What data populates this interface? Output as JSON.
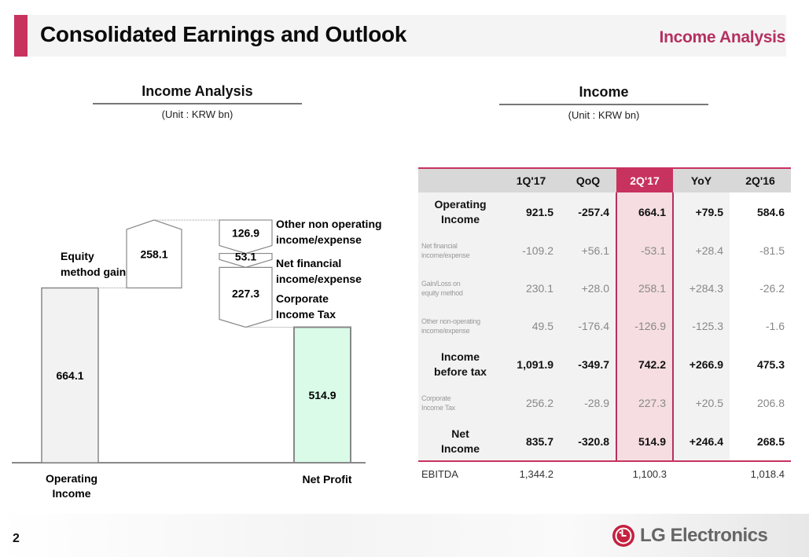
{
  "header": {
    "title": "Consolidated Earnings and Outlook",
    "section": "Income Analysis",
    "accent_color": "#c8325f"
  },
  "left_panel": {
    "title": "Income Analysis",
    "unit": "(Unit : KRW bn)"
  },
  "right_panel": {
    "title": "Income",
    "unit": "(Unit : KRW bn)"
  },
  "chart_data": {
    "type": "waterfall",
    "title": "Income Analysis",
    "unit": "KRW bn",
    "steps": [
      {
        "label": "Operating Income",
        "value": 664.1,
        "kind": "total",
        "display": "664.1"
      },
      {
        "label": "Equity method gain",
        "value": 258.1,
        "kind": "increase",
        "display": "258.1"
      },
      {
        "label": "Other non operating income/expense",
        "value": -126.9,
        "kind": "decrease",
        "display": "126.9"
      },
      {
        "label": "Net financial income/expense",
        "value": -53.1,
        "kind": "decrease",
        "display": "53.1"
      },
      {
        "label": "Corporate Income Tax",
        "value": -227.3,
        "kind": "decrease",
        "display": "227.3"
      },
      {
        "label": "Net Profit",
        "value": 514.9,
        "kind": "total",
        "display": "514.9"
      }
    ],
    "labels": {
      "operating_income": [
        "Operating",
        "Income"
      ],
      "equity": [
        "Equity",
        "method gain"
      ],
      "other": [
        "Other non operating",
        "income/expense"
      ],
      "netfin": [
        "Net financial",
        "income/expense"
      ],
      "tax": [
        "Corporate",
        "Income Tax"
      ],
      "net_profit": "Net Profit"
    },
    "colors": {
      "operating": "#f2f2f2",
      "net_profit": "#d9fbe8",
      "border": "#888888"
    }
  },
  "table": {
    "columns": [
      "",
      "1Q'17",
      "QoQ",
      "2Q'17",
      "YoY",
      "2Q'16"
    ],
    "highlight_column": "2Q'17",
    "rows": [
      {
        "label": [
          "Operating",
          "Income"
        ],
        "major": true,
        "values": [
          "921.5",
          "-257.4",
          "664.1",
          "+79.5",
          "584.6"
        ]
      },
      {
        "label": [
          "Net financial",
          "income/expense"
        ],
        "major": false,
        "values": [
          "-109.2",
          "+56.1",
          "-53.1",
          "+28.4",
          "-81.5"
        ]
      },
      {
        "label": [
          "Gain/Loss on",
          "equity method"
        ],
        "major": false,
        "values": [
          "230.1",
          "+28.0",
          "258.1",
          "+284.3",
          "-26.2"
        ]
      },
      {
        "label": [
          "Other non-operating",
          "income/expense"
        ],
        "major": false,
        "values": [
          "49.5",
          "-176.4",
          "-126.9",
          "-125.3",
          "-1.6"
        ]
      },
      {
        "label": [
          "Income",
          "before tax"
        ],
        "major": true,
        "values": [
          "1,091.9",
          "-349.7",
          "742.2",
          "+266.9",
          "475.3"
        ]
      },
      {
        "label": [
          "Corporate",
          "Income Tax"
        ],
        "major": false,
        "values": [
          "256.2",
          "-28.9",
          "227.3",
          "+20.5",
          "206.8"
        ]
      },
      {
        "label": [
          "Net",
          "Income"
        ],
        "major": true,
        "values": [
          "835.7",
          "-320.8",
          "514.9",
          "+246.4",
          "268.5"
        ]
      }
    ],
    "ebitda": {
      "label": "EBITDA",
      "values": [
        "1,344.2",
        "",
        "1,100.3",
        "",
        "1,018.4"
      ]
    }
  },
  "footer": {
    "page_number": "2",
    "brand": "LG Electronics",
    "logo_icon": "lg-logo-icon"
  }
}
